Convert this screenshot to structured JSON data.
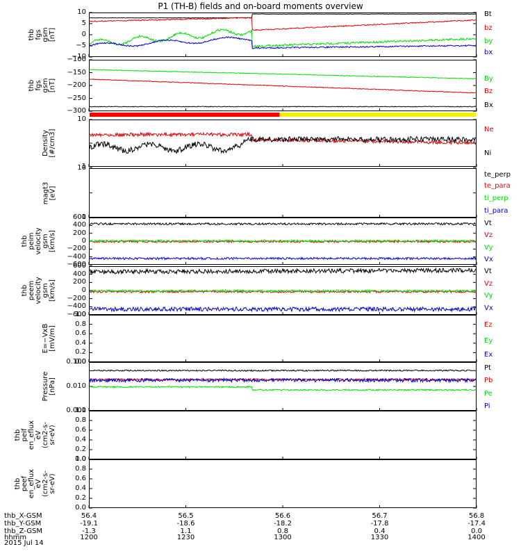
{
  "title": "P1 (TH-B) fields and on-board moments overview",
  "date_label": "2015 Jul 14",
  "colors": {
    "black": "#000000",
    "red": "#e00000",
    "green": "#00dd00",
    "blue": "#0000cc",
    "yellow": "#f5f000",
    "barred": "#ff0000"
  },
  "x_axis": {
    "rows": [
      {
        "label": "thb_X-GSM",
        "values": [
          "56.4",
          "56.5",
          "56.6",
          "56.7",
          "56.8"
        ]
      },
      {
        "label": "thb_Y-GSM",
        "values": [
          "-19.1",
          "-18.6",
          "-18.2",
          "-17.8",
          "-17.4"
        ]
      },
      {
        "label": "thb_Z-GSM",
        "values": [
          "-1.3",
          "1.1",
          "0.8",
          "0.4",
          "0.0"
        ]
      },
      {
        "label": "hhmm",
        "values": [
          "1200",
          "1230",
          "1300",
          "1330",
          "1400"
        ]
      }
    ]
  },
  "chart_data": [
    {
      "type": "line",
      "ylabel": "thb\nfgs\ngsm\n[nT]",
      "ylim": [
        -10,
        10
      ],
      "ticks": [
        "10",
        "5",
        "0",
        "−5",
        "−10"
      ],
      "series": [
        {
          "name": "Bt",
          "color": "black"
        },
        {
          "name": "bz",
          "color": "red"
        },
        {
          "name": "by",
          "color": "green"
        },
        {
          "name": "bx",
          "color": "blue"
        }
      ]
    },
    {
      "type": "line",
      "ylabel": "thb\nfgs\ngsm\n[nT]",
      "ylim": [
        -320,
        -95
      ],
      "ticks": [
        "−100",
        "−150",
        "−200",
        "−250",
        "−300"
      ],
      "series": [
        {
          "name": "By",
          "color": "green"
        },
        {
          "name": "Bz",
          "color": "red"
        },
        {
          "name": "Bx",
          "color": "black"
        }
      ]
    },
    {
      "type": "line",
      "ylabel": "Density\n[#/cm3]",
      "ylim": [
        1,
        10
      ],
      "log": true,
      "ticks": [
        "10",
        "",
        "1"
      ],
      "series": [
        {
          "name": "Ne",
          "color": "red"
        },
        {
          "name": "Ni",
          "color": "black"
        }
      ]
    },
    {
      "type": "line",
      "ylabel": "magt3\n[eV]",
      "ylim": [
        1,
        10
      ],
      "log": true,
      "ticks": [
        "10",
        "",
        "1"
      ],
      "series": [
        {
          "name": "te_perp",
          "color": "black"
        },
        {
          "name": "te_para",
          "color": "red"
        },
        {
          "name": "ti_perp",
          "color": "green"
        },
        {
          "name": "ti_para",
          "color": "blue"
        }
      ]
    },
    {
      "type": "line",
      "ylabel": "thb\npeim\nvelocity\ngsm\n[km/s]",
      "ylim": [
        -600,
        600
      ],
      "ticks": [
        "600",
        "400",
        "200",
        "0",
        "−200",
        "−400",
        "−600"
      ],
      "series": [
        {
          "name": "Vt",
          "color": "black"
        },
        {
          "name": "Vz",
          "color": "red"
        },
        {
          "name": "Vy",
          "color": "green"
        },
        {
          "name": "Vx",
          "color": "blue"
        }
      ]
    },
    {
      "type": "line",
      "ylabel": "thb\npeem\nvelocity\ngsm\n[km/s]",
      "ylim": [
        -600,
        600
      ],
      "ticks": [
        "600",
        "400",
        "200",
        "0",
        "−200",
        "−400",
        "−600"
      ],
      "series": [
        {
          "name": "Vt",
          "color": "black"
        },
        {
          "name": "Vz",
          "color": "red"
        },
        {
          "name": "Vy",
          "color": "green"
        },
        {
          "name": "Vx",
          "color": "blue"
        }
      ]
    },
    {
      "type": "line",
      "ylabel": "E=−VxB\n[mV/m]",
      "ylim": [
        0,
        1
      ],
      "ticks": [
        "1.0",
        "0.8",
        "0.6",
        "0.4",
        "0.2",
        "0.0"
      ],
      "series": [
        {
          "name": "Ez",
          "color": "red"
        },
        {
          "name": "Ey",
          "color": "green"
        },
        {
          "name": "Ex",
          "color": "blue"
        }
      ]
    },
    {
      "type": "line",
      "ylabel": "Pressure\n[nPa]",
      "ylim": [
        0.001,
        0.1
      ],
      "log": true,
      "ticks": [
        "0.100",
        "0.010",
        "0.001"
      ],
      "series": [
        {
          "name": "Pt",
          "color": "black"
        },
        {
          "name": "Pb",
          "color": "red"
        },
        {
          "name": "Pe",
          "color": "green"
        },
        {
          "name": "Pi",
          "color": "blue"
        }
      ]
    },
    {
      "type": "line",
      "ylabel": "thb\npeif\nen_eflux\neV\n(cm2-s-\nsr-eV)",
      "ylim": [
        0,
        1
      ],
      "ticks": [
        "1.0",
        "0.8",
        "0.6",
        "0.4",
        "0.2",
        "0.0"
      ],
      "series": []
    },
    {
      "type": "line",
      "ylabel": "thb\npeef\nen_eflux\neV\n(cm2-s-\nsr-eV)",
      "ylim": [
        0,
        1
      ],
      "ticks": [
        "1.0",
        "0.8",
        "0.6",
        "0.4",
        "0.2",
        "0.0"
      ],
      "series": []
    }
  ]
}
